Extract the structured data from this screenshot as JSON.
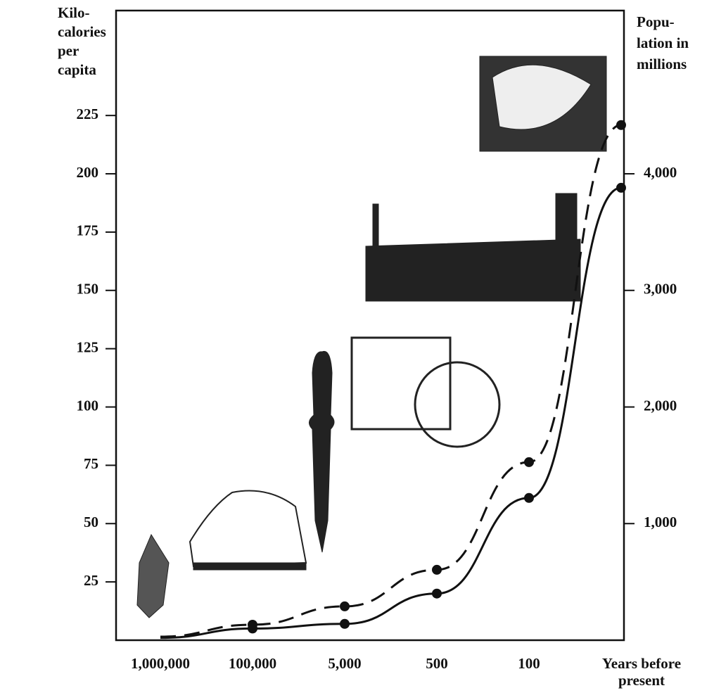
{
  "chart_data": {
    "type": "line",
    "ylabel": [
      "Kilo-",
      "calories",
      "per",
      "capita"
    ],
    "y2label": [
      "Popu-",
      "lation in",
      "millions"
    ],
    "xlabel": [
      "Years before",
      "present"
    ],
    "categories": [
      "1,000,000",
      "100,000",
      "5,000",
      "500",
      "100",
      null
    ],
    "series": [
      {
        "color": "#111111",
        "style": "solid",
        "axis": "y",
        "values": [
          1,
          5,
          7,
          20,
          61,
          194
        ]
      },
      {
        "color": "#111111",
        "style": "dashed",
        "axis": "y2",
        "values": [
          30,
          133,
          290,
          604,
          1527,
          4418
        ]
      }
    ],
    "ylim": [
      0,
      270
    ],
    "yticks": [
      25,
      50,
      75,
      100,
      125,
      150,
      175,
      200,
      225
    ],
    "y2lim": [
      0,
      5400
    ],
    "y2ticks": [
      {
        "value": 1000,
        "label": "1,000"
      },
      {
        "value": 2000,
        "label": "2,000"
      },
      {
        "value": 3000,
        "label": "3,000"
      },
      {
        "value": 4000,
        "label": "4,000"
      }
    ]
  }
}
